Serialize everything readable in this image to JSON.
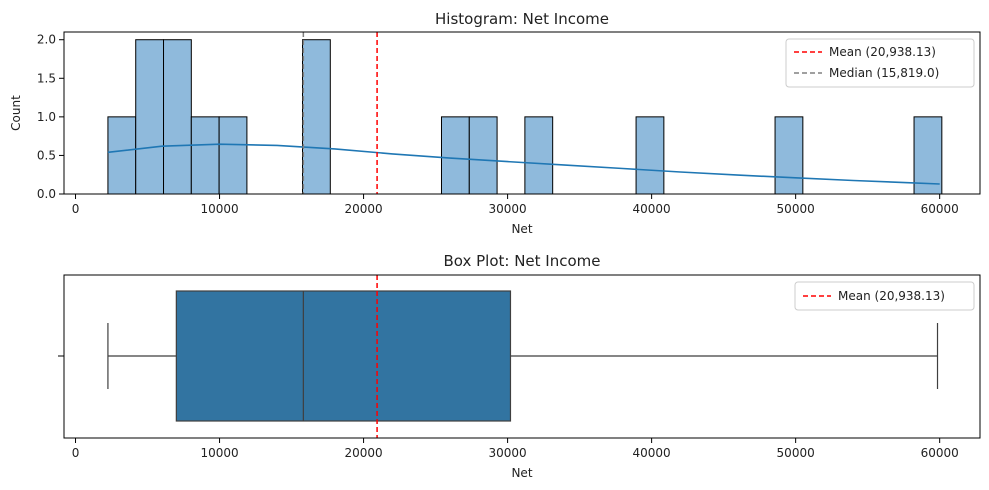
{
  "chart_data": [
    {
      "type": "bar",
      "title": "Histogram: Net Income",
      "xlabel": "Net",
      "ylabel": "Count",
      "xlim": [
        -800,
        62800
      ],
      "ylim": [
        0,
        2.1
      ],
      "xticks": [
        "0",
        "10000",
        "20000",
        "30000",
        "40000",
        "50000",
        "60000"
      ],
      "xtick_values": [
        0,
        10000,
        20000,
        30000,
        40000,
        50000,
        60000
      ],
      "yticks": [
        "0.0",
        "0.5",
        "1.0",
        "1.5",
        "2.0"
      ],
      "ytick_values": [
        0,
        0.5,
        1.0,
        1.5,
        2.0
      ],
      "bins": [
        {
          "x0": 2250,
          "x1": 4180,
          "count": 1
        },
        {
          "x0": 4180,
          "x1": 6110,
          "count": 2
        },
        {
          "x0": 6110,
          "x1": 8040,
          "count": 2
        },
        {
          "x0": 8040,
          "x1": 9970,
          "count": 1
        },
        {
          "x0": 9970,
          "x1": 11900,
          "count": 1
        },
        {
          "x0": 15760,
          "x1": 17690,
          "count": 2
        },
        {
          "x0": 25410,
          "x1": 27340,
          "count": 1
        },
        {
          "x0": 27340,
          "x1": 29270,
          "count": 1
        },
        {
          "x0": 31200,
          "x1": 33130,
          "count": 1
        },
        {
          "x0": 38920,
          "x1": 40850,
          "count": 1
        },
        {
          "x0": 48570,
          "x1": 50500,
          "count": 1
        },
        {
          "x0": 58220,
          "x1": 60150,
          "count": 1
        }
      ],
      "kde": {
        "x": [
          2250,
          6000,
          10000,
          14000,
          18000,
          22000,
          26000,
          30000,
          34000,
          38000,
          42000,
          46000,
          50000,
          54000,
          58000,
          60000
        ],
        "y": [
          0.54,
          0.62,
          0.645,
          0.63,
          0.585,
          0.52,
          0.465,
          0.42,
          0.375,
          0.33,
          0.285,
          0.245,
          0.21,
          0.175,
          0.145,
          0.13
        ]
      },
      "mean_line": {
        "value": 20938.13,
        "label": "Mean (20,938.13)",
        "color": "#ff0000"
      },
      "median_line": {
        "value": 15819.0,
        "label": "Median (15,819.0)",
        "color": "#808080"
      },
      "bar_color": "#8fbadc",
      "kde_color": "#1f77b4",
      "legend_position": "top-right"
    },
    {
      "type": "box",
      "title": "Box Plot: Net Income",
      "xlabel": "Net",
      "xlim": [
        -800,
        62800
      ],
      "xticks": [
        "0",
        "10000",
        "20000",
        "30000",
        "40000",
        "50000",
        "60000"
      ],
      "xtick_values": [
        0,
        10000,
        20000,
        30000,
        40000,
        50000,
        60000
      ],
      "box": {
        "min": 2250,
        "q1": 7000,
        "median": 15819.0,
        "q3": 30200,
        "max": 59850
      },
      "mean_line": {
        "value": 20938.13,
        "label": "Mean (20,938.13)",
        "color": "#ff0000"
      },
      "box_color": "#3274a1",
      "legend_position": "top-right"
    }
  ]
}
